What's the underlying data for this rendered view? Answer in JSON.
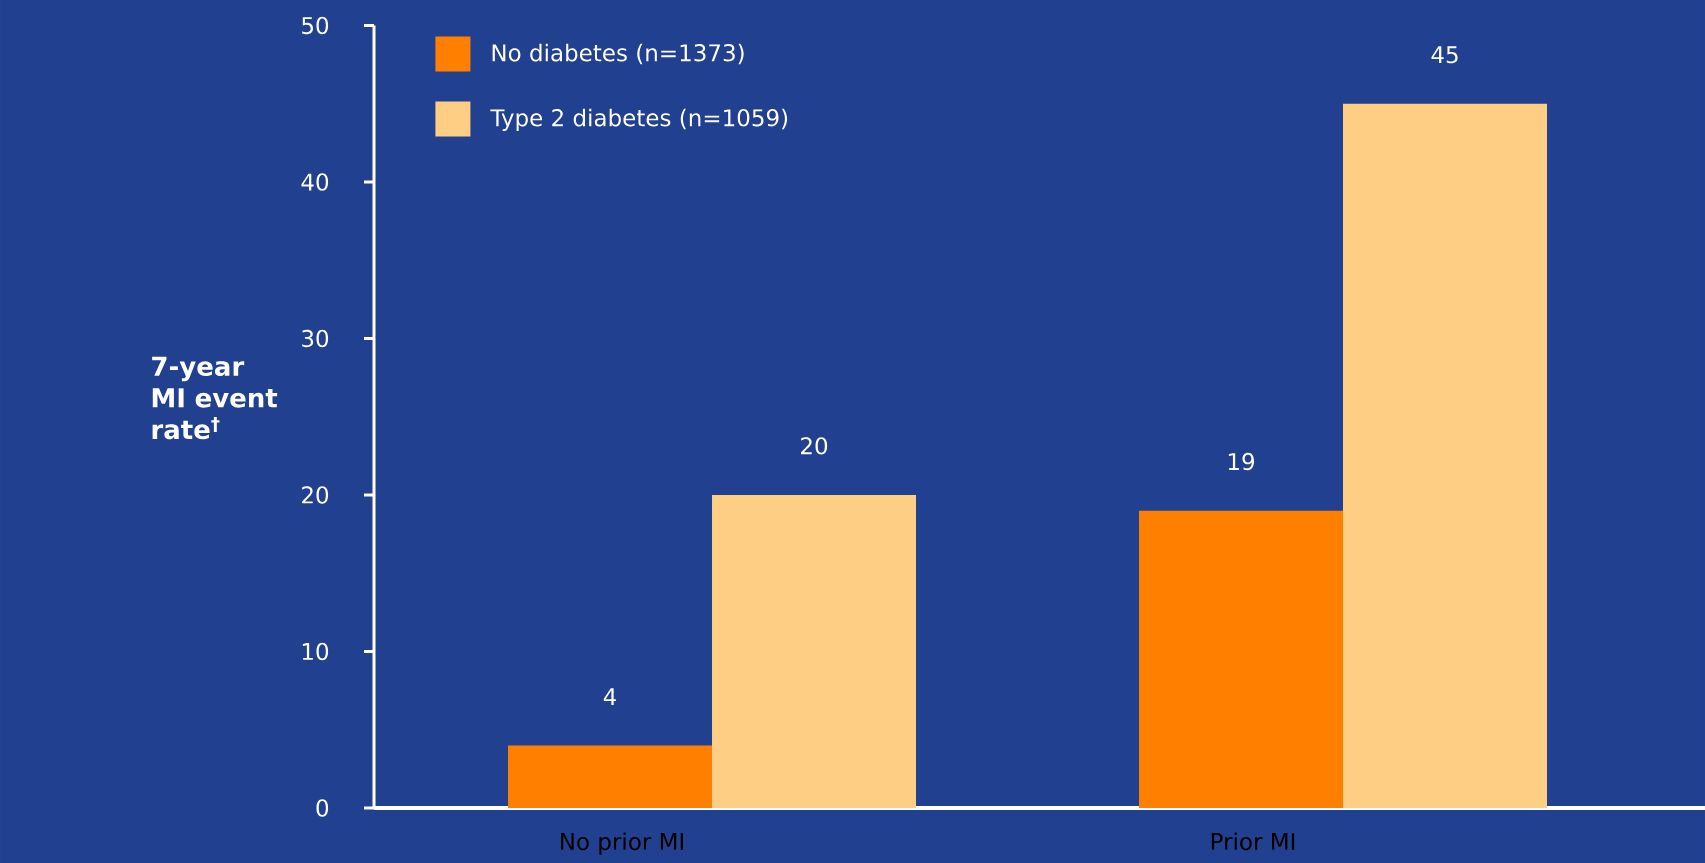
{
  "chart_data": {
    "type": "bar",
    "categories": [
      "No prior MI",
      "Prior MI"
    ],
    "series": [
      {
        "name": "No diabetes (n=1373)",
        "color": "#ff8000",
        "values": [
          4,
          19
        ]
      },
      {
        "name": "Type 2 diabetes (n=1059)",
        "color": "#fdce84",
        "values": [
          20,
          45
        ]
      }
    ],
    "ylabel": "7-year MI event rate$^{†}$",
    "ylim": [
      0,
      50
    ],
    "yticks": [
      0,
      10,
      20,
      30,
      40,
      50
    ],
    "data_labels": true,
    "legend": "top left"
  }
}
